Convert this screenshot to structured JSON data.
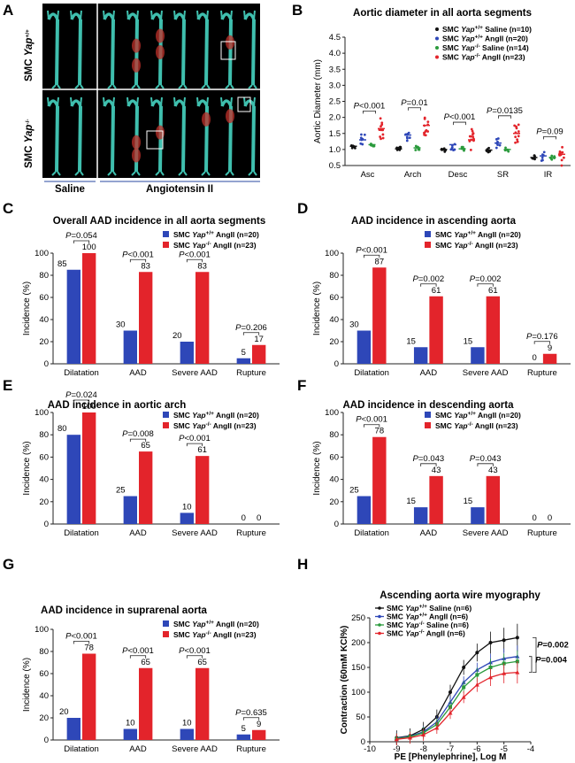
{
  "panel_labels": [
    "A",
    "B",
    "C",
    "D",
    "E",
    "F",
    "G",
    "H"
  ],
  "colors": {
    "wt_saline": "#111111",
    "wt_angii": "#2e47b8",
    "ko_saline": "#2a9a3c",
    "ko_angii": "#e3242b",
    "axis": "#222222",
    "tissue": "#3fbfae"
  },
  "panel_a": {
    "row_labels": [
      "SMC Yap+/+",
      "SMC Yap-/-"
    ],
    "group_labels": [
      "Saline",
      "Angiotensin II"
    ]
  },
  "chart_data": [
    {
      "id": "B",
      "type": "scatter",
      "title": "Aortic diameter in all aorta segments",
      "ylabel": "Aortic Diameter (mm)",
      "ylim": [
        0.5,
        4.5
      ],
      "yticks": [
        0.5,
        1.0,
        1.5,
        2.0,
        2.5,
        3.0,
        3.5,
        4.0,
        4.5
      ],
      "categories": [
        "Asc",
        "Arch",
        "Desc",
        "SR",
        "IR"
      ],
      "legend": [
        "SMC Yap+/+ Saline (n=10)",
        "SMC Yap+/+ AngII (n=20)",
        "SMC Yap-/- Saline (n=14)",
        "SMC Yap-/- AngII (n=23)"
      ],
      "series": [
        {
          "name": "SMC Yap+/+ Saline (n=10)",
          "means": [
            1.1,
            1.02,
            1.0,
            0.98,
            0.75
          ]
        },
        {
          "name": "SMC Yap+/+ AngII (n=20)",
          "means": [
            1.3,
            1.45,
            1.15,
            1.2,
            0.8
          ]
        },
        {
          "name": "SMC Yap-/- Saline (n=14)",
          "means": [
            1.15,
            1.05,
            1.02,
            1.0,
            0.75
          ]
        },
        {
          "name": "SMC Yap-/- AngII (n=23)",
          "means": [
            1.65,
            1.75,
            1.3,
            1.5,
            0.85
          ]
        }
      ],
      "pvalues": [
        "P<0.001",
        "P=0.01",
        "P<0.001",
        "P=0.0135",
        "P=0.09"
      ]
    },
    {
      "id": "C",
      "type": "bar",
      "title": "Overall AAD incidence in all aorta segments",
      "ylabel": "Incidence (%)",
      "ylim": [
        0,
        100
      ],
      "yticks": [
        0,
        20,
        40,
        60,
        80,
        100
      ],
      "categories": [
        "Dilatation",
        "AAD",
        "Severe AAD",
        "Rupture"
      ],
      "series": [
        {
          "name": "SMC Yap+/+ AngII (n=20)",
          "values": [
            85,
            30,
            20,
            5
          ]
        },
        {
          "name": "SMC Yap-/- AngII (n=23)",
          "values": [
            100,
            83,
            83,
            17
          ]
        }
      ],
      "pvalues": [
        "P=0.054",
        "P<0.001",
        "P<0.001",
        "P=0.206"
      ]
    },
    {
      "id": "D",
      "type": "bar",
      "title": "AAD incidence in ascending aorta",
      "ylabel": "Incidence (%)",
      "ylim": [
        0,
        100
      ],
      "yticks": [
        0,
        20,
        40,
        60,
        80,
        100
      ],
      "categories": [
        "Dilatation",
        "AAD",
        "Severe AAD",
        "Rupture"
      ],
      "series": [
        {
          "name": "SMC Yap+/+ AngII (n=20)",
          "values": [
            30,
            15,
            15,
            0
          ]
        },
        {
          "name": "SMC Yap-/- AngII (n=23)",
          "values": [
            87,
            61,
            61,
            9
          ]
        }
      ],
      "pvalues": [
        "P<0.001",
        "P=0.002",
        "P=0.002",
        "P=0.176"
      ]
    },
    {
      "id": "E",
      "type": "bar",
      "title": "AAD incidence in aortic arch",
      "ylabel": "Incidence (%)",
      "ylim": [
        0,
        100
      ],
      "yticks": [
        0,
        20,
        40,
        60,
        80,
        100
      ],
      "categories": [
        "Dilatation",
        "AAD",
        "Severe AAD",
        "Rupture"
      ],
      "series": [
        {
          "name": "SMC Yap+/+ AngII (n=20)",
          "values": [
            80,
            25,
            10,
            0
          ]
        },
        {
          "name": "SMC Yap-/- AngII (n=23)",
          "values": [
            100,
            65,
            61,
            0
          ]
        }
      ],
      "pvalues": [
        "P=0.024",
        "P=0.008",
        "P<0.001",
        ""
      ]
    },
    {
      "id": "F",
      "type": "bar",
      "title": "AAD incidence in descending aorta",
      "ylabel": "Incidence (%)",
      "ylim": [
        0,
        100
      ],
      "yticks": [
        0,
        20,
        40,
        60,
        80,
        100
      ],
      "categories": [
        "Dilatation",
        "AAD",
        "Severe AAD",
        "Rupture"
      ],
      "series": [
        {
          "name": "SMC Yap+/+ AngII (n=20)",
          "values": [
            25,
            15,
            15,
            0
          ]
        },
        {
          "name": "SMC Yap-/- AngII (n=23)",
          "values": [
            78,
            43,
            43,
            0
          ]
        }
      ],
      "pvalues": [
        "P<0.001",
        "P=0.043",
        "P=0.043",
        ""
      ]
    },
    {
      "id": "G",
      "type": "bar",
      "title": "AAD incidence in suprarenal aorta",
      "ylabel": "Incidence (%)",
      "ylim": [
        0,
        100
      ],
      "yticks": [
        0,
        20,
        40,
        60,
        80,
        100
      ],
      "categories": [
        "Dilatation",
        "AAD",
        "Severe AAD",
        "Rupture"
      ],
      "series": [
        {
          "name": "SMC Yap+/+ AngII (n=20)",
          "values": [
            20,
            10,
            10,
            5
          ]
        },
        {
          "name": "SMC Yap-/- AngII (n=23)",
          "values": [
            78,
            65,
            65,
            9
          ]
        }
      ],
      "pvalues": [
        "P<0.001",
        "P<0.001",
        "P<0.001",
        "P=0.635"
      ]
    },
    {
      "id": "H",
      "type": "line",
      "title": "Ascending aorta wire myography",
      "xlabel": "PE [Phenylephrine], Log M",
      "ylabel": "Contraction (60mM KCl%)",
      "xlim": [
        -10,
        -4
      ],
      "ylim": [
        0,
        250
      ],
      "xticks": [
        -10,
        -9,
        -8,
        -7,
        -6,
        -5,
        -4
      ],
      "yticks": [
        0,
        50,
        100,
        150,
        200,
        250
      ],
      "x": [
        -9,
        -8.5,
        -8,
        -7.5,
        -7,
        -6.5,
        -6,
        -5.5,
        -5,
        -4.5
      ],
      "series": [
        {
          "name": "SMC Yap+/+ Saline (n=6)",
          "values": [
            8,
            12,
            25,
            50,
            100,
            150,
            180,
            200,
            205,
            210
          ]
        },
        {
          "name": "SMC Yap+/+ AngII (n=6)",
          "values": [
            7,
            11,
            20,
            40,
            80,
            120,
            145,
            160,
            168,
            172
          ]
        },
        {
          "name": "SMC Yap-/- Saline (n=6)",
          "values": [
            6,
            10,
            18,
            35,
            70,
            110,
            135,
            150,
            158,
            162
          ]
        },
        {
          "name": "SMC Yap-/- AngII (n=6)",
          "values": [
            5,
            8,
            14,
            28,
            58,
            90,
            115,
            130,
            138,
            140
          ]
        }
      ],
      "errors": [
        15,
        15,
        15,
        15,
        15,
        15,
        18,
        22,
        25,
        28
      ],
      "pvalues": [
        "P=0.002",
        "P=0.004"
      ]
    }
  ]
}
